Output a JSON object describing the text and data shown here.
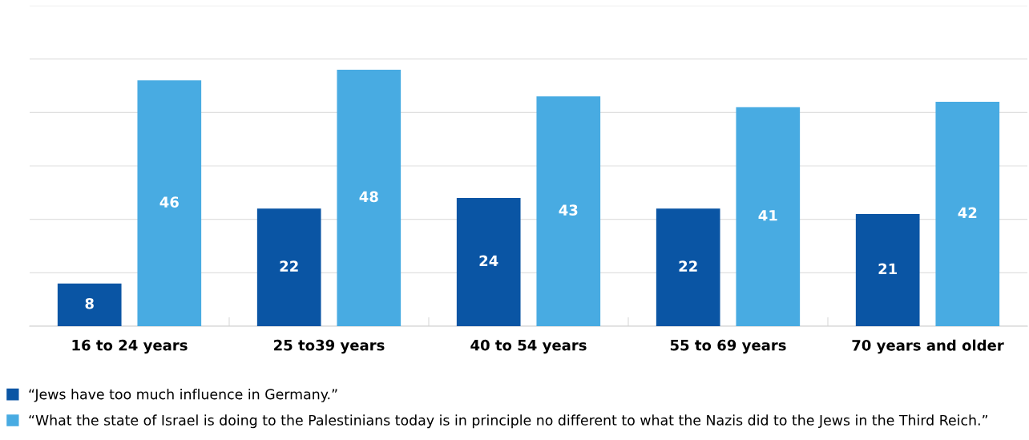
{
  "chart_data": {
    "type": "bar",
    "categories": [
      "16 to 24 years",
      "25 to39 years",
      "40 to 54 years",
      "55 to 69 years",
      "70 years and older"
    ],
    "series": [
      {
        "name": "“Jews have too much influence in Germany.”",
        "color": "#0a55a4",
        "values": [
          8,
          22,
          24,
          22,
          21
        ]
      },
      {
        "name": "“What the state of Israel is doing to the Palestinians today is in principle no different to what the Nazis did to the Jews in the Third Reich.”",
        "color": "#48abe2",
        "values": [
          46,
          48,
          43,
          41,
          42
        ]
      }
    ],
    "ylim": [
      0,
      60
    ],
    "yticks": [
      {
        "value": 0,
        "label": null
      },
      {
        "value": 10,
        "label": null
      },
      {
        "value": 20,
        "label": null
      },
      {
        "value": 30,
        "label": null
      },
      {
        "value": 40,
        "label": null
      },
      {
        "value": 50,
        "label": null
      },
      {
        "value": 60,
        "label": null
      }
    ],
    "grid": "y",
    "legend": "bottom",
    "tick_labels": "x",
    "data_labels": true
  }
}
